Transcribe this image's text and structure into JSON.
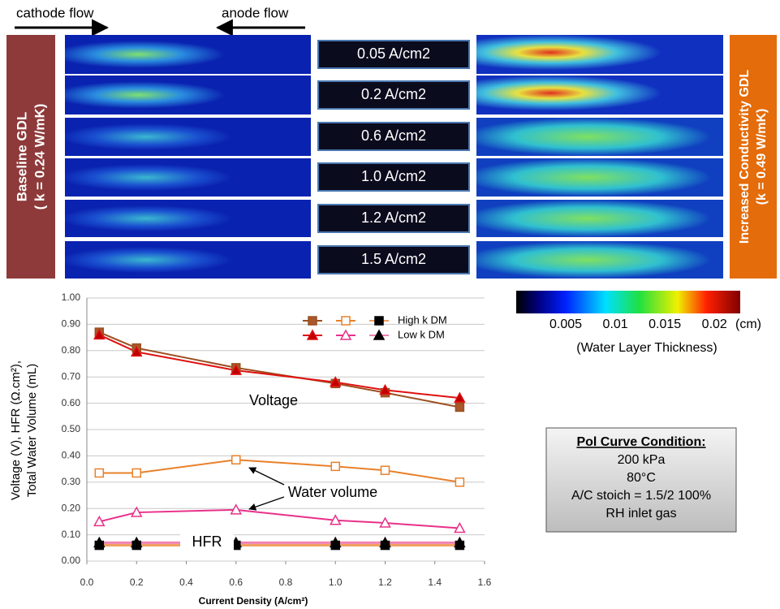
{
  "flow": {
    "cathode": "cathode flow",
    "anode": "anode flow"
  },
  "baseline_label": [
    "Baseline GDL",
    "( k = 0.24 W/mK)"
  ],
  "increased_label": [
    "Increased Conductivity GDL",
    "(k = 0.49 W/mK)"
  ],
  "current_densities": [
    "0.05 A/cm2",
    "0.2 A/cm2",
    "0.6 A/cm2",
    "1.0 A/cm2",
    "1.2 A/cm2",
    "1.5 A/cm2"
  ],
  "colorbar": {
    "lim": [
      0,
      0.0226
    ],
    "ticks": [
      0.005,
      0.01,
      0.015,
      0.02
    ],
    "unit": "(cm)",
    "label": "(Water Layer Thickness)"
  },
  "conditions": {
    "title": "Pol Curve Condition:",
    "lines": [
      "200 kPa",
      "80°C",
      "A/C stoich = 1.5/2 100%",
      "RH inlet gas"
    ]
  },
  "chart_data": {
    "type": "line",
    "x_label": "Current Density (A/cm²)",
    "y_label": [
      "Voltage (V), HFR (Ω.cm²),",
      "Total Water Volume (mL)"
    ],
    "annotations": {
      "voltage": "Voltage",
      "water": "Water volume",
      "hfr": "HFR"
    },
    "x": [
      0.05,
      0.2,
      0.6,
      1.0,
      1.2,
      1.5
    ],
    "xlim": [
      0,
      1.6
    ],
    "xticks": [
      {
        "value": 0,
        "label": "0.0"
      },
      0.2,
      0.4,
      0.6,
      0.8,
      {
        "value": 1,
        "label": "1.0"
      },
      1.2,
      1.4,
      1.6
    ],
    "ylim": [
      0,
      1
    ],
    "yticks": [
      {
        "value": 0,
        "label": "0.00"
      },
      {
        "value": 0.1,
        "label": "0.10"
      },
      {
        "value": 0.2,
        "label": "0.20"
      },
      {
        "value": 0.3,
        "label": "0.30"
      },
      {
        "value": 0.4,
        "label": "0.40"
      },
      {
        "value": 0.5,
        "label": "0.50"
      },
      {
        "value": 0.6,
        "label": "0.60"
      },
      {
        "value": 0.7,
        "label": "0.70"
      },
      {
        "value": 0.8,
        "label": "0.80"
      },
      {
        "value": 0.9,
        "label": "0.90"
      },
      {
        "value": 1,
        "label": "1.00"
      }
    ],
    "grid": true,
    "series": [
      {
        "name": "High k DM",
        "marker": "square",
        "voltage": {
          "color": "#9c4f1f",
          "fill": "#a8582a",
          "values": [
            0.87,
            0.81,
            0.735,
            0.675,
            0.64,
            0.585
          ]
        },
        "water": {
          "color": "#e8802a",
          "fill": "#ffffff",
          "values": [
            0.335,
            0.335,
            0.385,
            0.36,
            0.345,
            0.3
          ]
        },
        "hfr": {
          "color": "#f0a060",
          "fill": "#000000",
          "values": [
            0.06,
            0.06,
            0.06,
            0.06,
            0.06,
            0.06
          ]
        }
      },
      {
        "name": "Low k DM",
        "marker": "triangle",
        "voltage": {
          "color": "#e01010",
          "fill": "#c00000",
          "values": [
            0.86,
            0.795,
            0.725,
            0.68,
            0.65,
            0.62
          ]
        },
        "water": {
          "color": "#e8308a",
          "fill": "#ffffff",
          "values": [
            0.15,
            0.185,
            0.195,
            0.155,
            0.145,
            0.125
          ]
        },
        "hfr": {
          "color": "#f080b0",
          "fill": "#000000",
          "values": [
            0.07,
            0.07,
            0.07,
            0.07,
            0.07,
            0.07
          ]
        }
      }
    ]
  }
}
